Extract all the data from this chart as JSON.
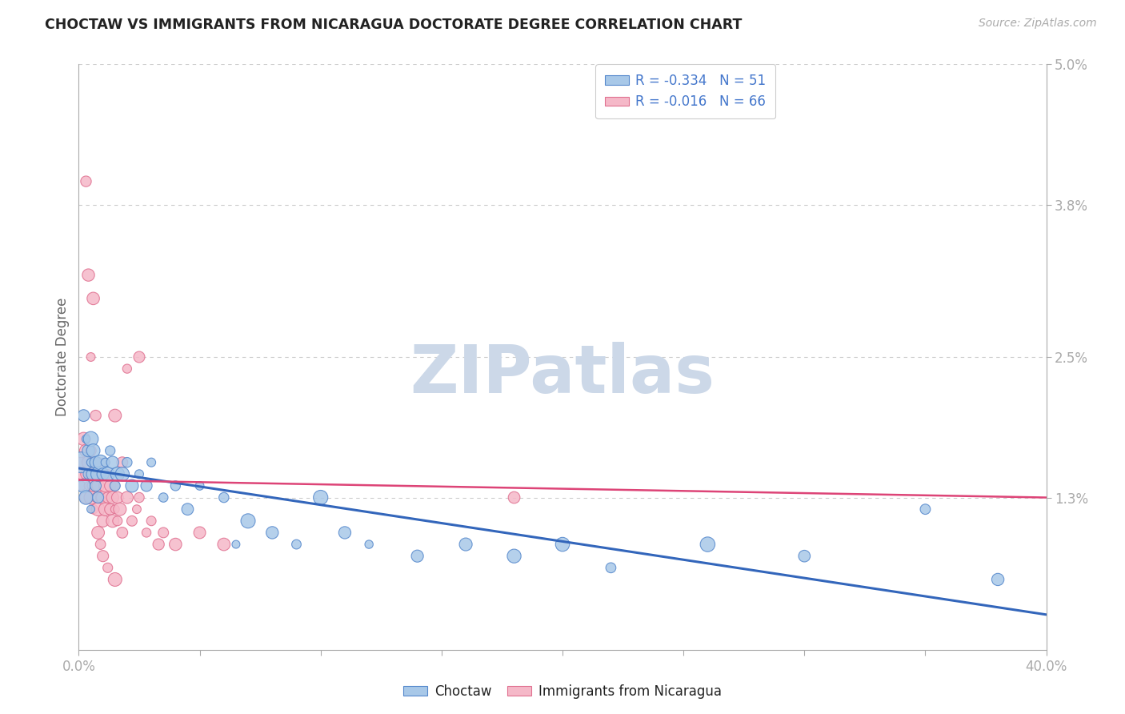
{
  "title": "CHOCTAW VS IMMIGRANTS FROM NICARAGUA DOCTORATE DEGREE CORRELATION CHART",
  "source": "Source: ZipAtlas.com",
  "ylabel": "Doctorate Degree",
  "xlim": [
    0,
    0.4
  ],
  "ylim": [
    0,
    0.05
  ],
  "yticks_right": [
    0.013,
    0.025,
    0.038,
    0.05
  ],
  "yticks_right_labels": [
    "1.3%",
    "2.5%",
    "3.8%",
    "5.0%"
  ],
  "watermark": "ZIPatlas",
  "legend_R_blue": "R = -0.334",
  "legend_N_blue": "N = 51",
  "legend_R_pink": "R = -0.016",
  "legend_N_pink": "N = 66",
  "blue_fill": "#a8c8e8",
  "pink_fill": "#f5b8c8",
  "blue_edge": "#5588cc",
  "pink_edge": "#e07090",
  "blue_line": "#3366bb",
  "pink_line": "#dd4477",
  "legend_color": "#4477cc",
  "background_color": "#ffffff",
  "grid_color": "#cccccc",
  "watermark_color": "#ccd8e8",
  "blue_label": "Choctaw",
  "pink_label": "Immigrants from Nicaragua",
  "choctaw_x": [
    0.001,
    0.002,
    0.002,
    0.003,
    0.003,
    0.004,
    0.004,
    0.005,
    0.005,
    0.005,
    0.006,
    0.006,
    0.007,
    0.007,
    0.008,
    0.008,
    0.009,
    0.01,
    0.011,
    0.012,
    0.013,
    0.014,
    0.015,
    0.016,
    0.018,
    0.02,
    0.022,
    0.025,
    0.028,
    0.03,
    0.035,
    0.04,
    0.045,
    0.05,
    0.06,
    0.065,
    0.07,
    0.08,
    0.09,
    0.1,
    0.11,
    0.12,
    0.14,
    0.16,
    0.18,
    0.2,
    0.22,
    0.26,
    0.3,
    0.35,
    0.38
  ],
  "choctaw_y": [
    0.016,
    0.02,
    0.014,
    0.018,
    0.013,
    0.017,
    0.015,
    0.016,
    0.018,
    0.012,
    0.015,
    0.017,
    0.014,
    0.016,
    0.015,
    0.013,
    0.016,
    0.015,
    0.016,
    0.015,
    0.017,
    0.016,
    0.014,
    0.015,
    0.015,
    0.016,
    0.014,
    0.015,
    0.014,
    0.016,
    0.013,
    0.014,
    0.012,
    0.014,
    0.013,
    0.009,
    0.011,
    0.01,
    0.009,
    0.013,
    0.01,
    0.009,
    0.008,
    0.009,
    0.008,
    0.009,
    0.007,
    0.009,
    0.008,
    0.012,
    0.006
  ],
  "nicaragua_x": [
    0.001,
    0.001,
    0.002,
    0.002,
    0.003,
    0.003,
    0.003,
    0.004,
    0.004,
    0.005,
    0.005,
    0.005,
    0.006,
    0.006,
    0.006,
    0.007,
    0.007,
    0.008,
    0.008,
    0.008,
    0.009,
    0.009,
    0.01,
    0.01,
    0.01,
    0.011,
    0.011,
    0.012,
    0.012,
    0.013,
    0.013,
    0.014,
    0.014,
    0.015,
    0.015,
    0.016,
    0.016,
    0.017,
    0.018,
    0.02,
    0.022,
    0.024,
    0.025,
    0.028,
    0.03,
    0.033,
    0.035,
    0.04,
    0.05,
    0.06,
    0.008,
    0.01,
    0.012,
    0.015,
    0.005,
    0.003,
    0.02,
    0.025,
    0.015,
    0.018,
    0.007,
    0.009,
    0.011,
    0.004,
    0.006,
    0.18
  ],
  "nicaragua_y": [
    0.016,
    0.014,
    0.018,
    0.015,
    0.017,
    0.015,
    0.013,
    0.016,
    0.014,
    0.017,
    0.015,
    0.013,
    0.016,
    0.014,
    0.012,
    0.015,
    0.013,
    0.016,
    0.014,
    0.012,
    0.015,
    0.013,
    0.015,
    0.013,
    0.011,
    0.014,
    0.012,
    0.015,
    0.013,
    0.014,
    0.012,
    0.013,
    0.011,
    0.014,
    0.012,
    0.013,
    0.011,
    0.012,
    0.01,
    0.013,
    0.011,
    0.012,
    0.013,
    0.01,
    0.011,
    0.009,
    0.01,
    0.009,
    0.01,
    0.009,
    0.01,
    0.008,
    0.007,
    0.006,
    0.025,
    0.04,
    0.024,
    0.025,
    0.02,
    0.016,
    0.02,
    0.009,
    0.016,
    0.032,
    0.03,
    0.013
  ],
  "blue_line_x0": 0.0,
  "blue_line_x1": 0.4,
  "blue_line_y0": 0.0155,
  "blue_line_y1": 0.003,
  "pink_line_x0": 0.0,
  "pink_line_x1": 0.4,
  "pink_line_y0": 0.0145,
  "pink_line_y1": 0.013
}
